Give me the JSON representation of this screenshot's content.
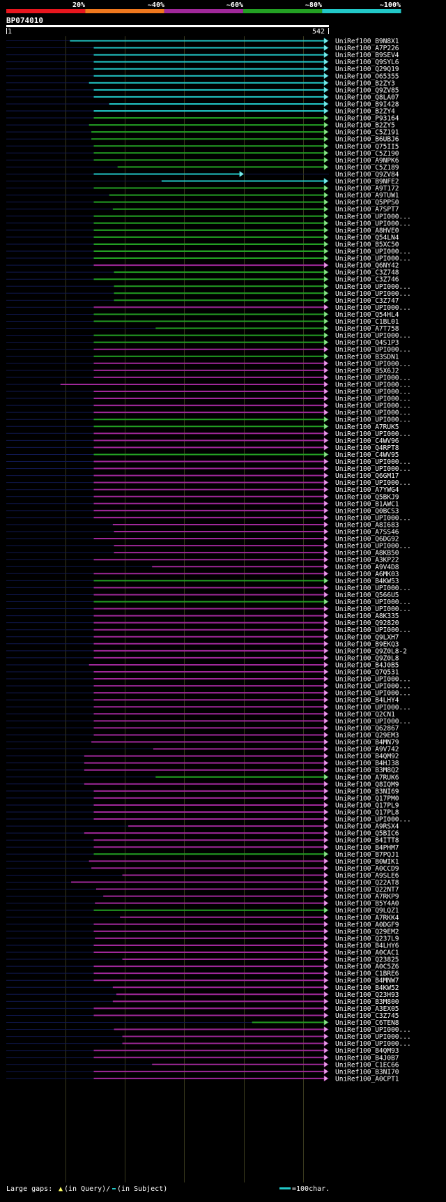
{
  "identity_scale": {
    "labels": [
      "20%",
      "~40%",
      "~60%",
      "~80%",
      "~100%"
    ],
    "colors": [
      "#e8161e",
      "#f0781e",
      "#a0289a",
      "#23a023",
      "#22c8c8"
    ]
  },
  "query": {
    "name": "BP074010",
    "start_label": "1",
    "end_label": "542",
    "length": 542
  },
  "hits": [
    {
      "name": "UniRef100_B9N8X1",
      "s": 108,
      "e": 542,
      "c": "cyan"
    },
    {
      "name": "UniRef100_A7P226",
      "s": 148,
      "e": 542,
      "c": "cyan"
    },
    {
      "name": "UniRef100_B9SEV4",
      "s": 148,
      "e": 542,
      "c": "cyan"
    },
    {
      "name": "UniRef100_Q9SYL6",
      "s": 148,
      "e": 542,
      "c": "cyan"
    },
    {
      "name": "UniRef100_Q29Q19",
      "s": 148,
      "e": 542,
      "c": "cyan"
    },
    {
      "name": "UniRef100_O65355",
      "s": 148,
      "e": 542,
      "c": "cyan"
    },
    {
      "name": "UniRef100_B2ZY3",
      "s": 140,
      "e": 542,
      "c": "cyan"
    },
    {
      "name": "UniRef100_Q9ZV85",
      "s": 148,
      "e": 542,
      "c": "cyan"
    },
    {
      "name": "UniRef100_Q8LA07",
      "s": 148,
      "e": 542,
      "c": "cyan"
    },
    {
      "name": "UniRef100_B9I428",
      "s": 174,
      "e": 542,
      "c": "cyan"
    },
    {
      "name": "UniRef100_B2ZY4",
      "s": 148,
      "e": 542,
      "c": "cyan"
    },
    {
      "name": "UniRef100_P93164",
      "s": 148,
      "e": 542,
      "c": "green"
    },
    {
      "name": "UniRef100_B2ZY5",
      "s": 140,
      "e": 542,
      "c": "green"
    },
    {
      "name": "UniRef100_C5Z191",
      "s": 144,
      "e": 542,
      "c": "green"
    },
    {
      "name": "UniRef100_B6UBJ6",
      "s": 144,
      "e": 542,
      "c": "green"
    },
    {
      "name": "UniRef100_Q75II5",
      "s": 148,
      "e": 542,
      "c": "green"
    },
    {
      "name": "UniRef100_C5Z190",
      "s": 148,
      "e": 542,
      "c": "green"
    },
    {
      "name": "UniRef100_A9NPK6",
      "s": 148,
      "e": 542,
      "c": "green"
    },
    {
      "name": "UniRef100_C5Z189",
      "s": 188,
      "e": 542,
      "c": "green"
    },
    {
      "name": "UniRef100_Q9ZV84",
      "s": 148,
      "e": 400,
      "c": "cyan"
    },
    {
      "name": "UniRef100_B9NFE2",
      "s": 262,
      "e": 542,
      "c": "cyan"
    },
    {
      "name": "UniRef100_A9T172",
      "s": 148,
      "e": 542,
      "c": "green"
    },
    {
      "name": "UniRef100_A9TUW1",
      "s": 174,
      "e": 542,
      "c": "green"
    },
    {
      "name": "UniRef100_Q5PPS0",
      "s": 148,
      "e": 542,
      "c": "green"
    },
    {
      "name": "UniRef100_A7SPT7",
      "s": 180,
      "e": 542,
      "c": "green"
    },
    {
      "name": "UniRef100_UPI000...",
      "s": 148,
      "e": 542,
      "c": "green"
    },
    {
      "name": "UniRef100_UPI000...",
      "s": 148,
      "e": 542,
      "c": "green"
    },
    {
      "name": "UniRef100_A8HVE0",
      "s": 148,
      "e": 542,
      "c": "green"
    },
    {
      "name": "UniRef100_Q54LN4",
      "s": 148,
      "e": 542,
      "c": "green"
    },
    {
      "name": "UniRef100_B5XC50",
      "s": 148,
      "e": 542,
      "c": "green"
    },
    {
      "name": "UniRef100_UPI000...",
      "s": 148,
      "e": 542,
      "c": "green"
    },
    {
      "name": "UniRef100_UPI000...",
      "s": 148,
      "e": 542,
      "c": "green"
    },
    {
      "name": "UniRef100_Q6NY42",
      "s": 148,
      "e": 542,
      "c": "magenta"
    },
    {
      "name": "UniRef100_C3Z748",
      "s": 182,
      "e": 542,
      "c": "green"
    },
    {
      "name": "UniRef100_C3Z746",
      "s": 148,
      "e": 542,
      "c": "green"
    },
    {
      "name": "UniRef100_UPI000...",
      "s": 182,
      "e": 542,
      "c": "green"
    },
    {
      "name": "UniRef100_UPI000...",
      "s": 182,
      "e": 542,
      "c": "green"
    },
    {
      "name": "UniRef100_C3Z747",
      "s": 182,
      "e": 542,
      "c": "green"
    },
    {
      "name": "UniRef100_UPI000...",
      "s": 148,
      "e": 542,
      "c": "magenta"
    },
    {
      "name": "UniRef100_Q54HL4",
      "s": 148,
      "e": 542,
      "c": "green"
    },
    {
      "name": "UniRef100_C1BL01",
      "s": 148,
      "e": 542,
      "c": "green"
    },
    {
      "name": "UniRef100_A7T758",
      "s": 252,
      "e": 542,
      "c": "green"
    },
    {
      "name": "UniRef100_UPI000...",
      "s": 148,
      "e": 542,
      "c": "green"
    },
    {
      "name": "UniRef100_Q4S1P3",
      "s": 148,
      "e": 542,
      "c": "green"
    },
    {
      "name": "UniRef100_UPI000...",
      "s": 148,
      "e": 542,
      "c": "magenta"
    },
    {
      "name": "UniRef100_B3SDN1",
      "s": 148,
      "e": 542,
      "c": "green"
    },
    {
      "name": "UniRef100_UPI000...",
      "s": 148,
      "e": 542,
      "c": "magenta"
    },
    {
      "name": "UniRef100_B5X6J2",
      "s": 148,
      "e": 542,
      "c": "magenta"
    },
    {
      "name": "UniRef100_UPI000...",
      "s": 148,
      "e": 542,
      "c": "magenta"
    },
    {
      "name": "UniRef100_UPI000...",
      "s": 92,
      "e": 542,
      "c": "magenta"
    },
    {
      "name": "UniRef100_UPI000...",
      "s": 148,
      "e": 542,
      "c": "magenta"
    },
    {
      "name": "UniRef100_UPI000...",
      "s": 148,
      "e": 542,
      "c": "magenta"
    },
    {
      "name": "UniRef100_UPI000...",
      "s": 148,
      "e": 542,
      "c": "magenta"
    },
    {
      "name": "UniRef100_UPI000...",
      "s": 148,
      "e": 542,
      "c": "magenta"
    },
    {
      "name": "UniRef100_UPI000...",
      "s": 148,
      "e": 542,
      "c": "green"
    },
    {
      "name": "UniRef100_A7RUK5",
      "s": 148,
      "e": 542,
      "c": "green"
    },
    {
      "name": "UniRef100_UPI000...",
      "s": 148,
      "e": 542,
      "c": "magenta"
    },
    {
      "name": "UniRef100_C4WV96",
      "s": 148,
      "e": 542,
      "c": "magenta"
    },
    {
      "name": "UniRef100_Q4RPT8",
      "s": 148,
      "e": 542,
      "c": "magenta"
    },
    {
      "name": "UniRef100_C4WV95",
      "s": 148,
      "e": 542,
      "c": "green"
    },
    {
      "name": "UniRef100_UPI000...",
      "s": 148,
      "e": 542,
      "c": "magenta"
    },
    {
      "name": "UniRef100_UPI000...",
      "s": 148,
      "e": 542,
      "c": "magenta"
    },
    {
      "name": "UniRef100_Q6GM17",
      "s": 148,
      "e": 542,
      "c": "magenta"
    },
    {
      "name": "UniRef100_UPI000...",
      "s": 148,
      "e": 542,
      "c": "magenta"
    },
    {
      "name": "UniRef100_A7YWG4",
      "s": 148,
      "e": 542,
      "c": "magenta"
    },
    {
      "name": "UniRef100_Q5BKJ9",
      "s": 148,
      "e": 542,
      "c": "magenta"
    },
    {
      "name": "UniRef100_B1AWC1",
      "s": 148,
      "e": 542,
      "c": "magenta"
    },
    {
      "name": "UniRef100_Q0BCS3",
      "s": 148,
      "e": 542,
      "c": "magenta"
    },
    {
      "name": "UniRef100_UPI000...",
      "s": 148,
      "e": 542,
      "c": "magenta"
    },
    {
      "name": "UniRef100_A8I683",
      "s": 180,
      "e": 542,
      "c": "magenta"
    },
    {
      "name": "UniRef100_A7SS46",
      "s": 182,
      "e": 542,
      "c": "magenta"
    },
    {
      "name": "UniRef100_Q6DG92",
      "s": 148,
      "e": 542,
      "c": "magenta"
    },
    {
      "name": "UniRef100_UPI000...",
      "s": 182,
      "e": 542,
      "c": "magenta"
    },
    {
      "name": "UniRef100_A8KB50",
      "s": 182,
      "e": 542,
      "c": "magenta"
    },
    {
      "name": "UniRef100_A3KP22",
      "s": 148,
      "e": 542,
      "c": "magenta"
    },
    {
      "name": "UniRef100_A9V4D8",
      "s": 246,
      "e": 542,
      "c": "magenta"
    },
    {
      "name": "UniRef100_A6MK03",
      "s": 148,
      "e": 542,
      "c": "magenta"
    },
    {
      "name": "UniRef100_B4KW53",
      "s": 148,
      "e": 542,
      "c": "green"
    },
    {
      "name": "UniRef100_UPI000...",
      "s": 148,
      "e": 542,
      "c": "magenta"
    },
    {
      "name": "UniRef100_Q566U5",
      "s": 148,
      "e": 542,
      "c": "magenta"
    },
    {
      "name": "UniRef100_UPI000...",
      "s": 148,
      "e": 542,
      "c": "green"
    },
    {
      "name": "UniRef100_UPI000...",
      "s": 148,
      "e": 542,
      "c": "magenta"
    },
    {
      "name": "UniRef100_A8K335",
      "s": 148,
      "e": 542,
      "c": "magenta"
    },
    {
      "name": "UniRef100_Q92820",
      "s": 148,
      "e": 542,
      "c": "magenta"
    },
    {
      "name": "UniRef100_UPI000...",
      "s": 148,
      "e": 542,
      "c": "magenta"
    },
    {
      "name": "UniRef100_Q9LXH7",
      "s": 148,
      "e": 542,
      "c": "magenta"
    },
    {
      "name": "UniRef100_B9EKQ3",
      "s": 148,
      "e": 542,
      "c": "magenta"
    },
    {
      "name": "UniRef100_Q9Z0L8-2",
      "s": 148,
      "e": 542,
      "c": "magenta"
    },
    {
      "name": "UniRef100_Q9Z0L8",
      "s": 148,
      "e": 542,
      "c": "magenta"
    },
    {
      "name": "UniRef100_B4J0B5",
      "s": 140,
      "e": 542,
      "c": "magenta"
    },
    {
      "name": "UniRef100_Q7Q531",
      "s": 148,
      "e": 542,
      "c": "magenta"
    },
    {
      "name": "UniRef100_UPI000...",
      "s": 148,
      "e": 542,
      "c": "magenta"
    },
    {
      "name": "UniRef100_UPI000...",
      "s": 148,
      "e": 542,
      "c": "magenta"
    },
    {
      "name": "UniRef100_UPI000...",
      "s": 148,
      "e": 542,
      "c": "magenta"
    },
    {
      "name": "UniRef100_B4LHY4",
      "s": 148,
      "e": 542,
      "c": "magenta"
    },
    {
      "name": "UniRef100_UPI000...",
      "s": 148,
      "e": 542,
      "c": "magenta"
    },
    {
      "name": "UniRef100_Q2CN1",
      "s": 148,
      "e": 542,
      "c": "magenta"
    },
    {
      "name": "UniRef100_UPI000...",
      "s": 148,
      "e": 542,
      "c": "magenta"
    },
    {
      "name": "UniRef100_Q62867",
      "s": 148,
      "e": 542,
      "c": "magenta"
    },
    {
      "name": "UniRef100_Q29EM3",
      "s": 148,
      "e": 542,
      "c": "magenta"
    },
    {
      "name": "UniRef100_B4MN79",
      "s": 144,
      "e": 542,
      "c": "magenta"
    },
    {
      "name": "UniRef100_A9V742",
      "s": 248,
      "e": 542,
      "c": "magenta"
    },
    {
      "name": "UniRef100_B4QM92",
      "s": 132,
      "e": 542,
      "c": "magenta"
    },
    {
      "name": "UniRef100_B4HJ38",
      "s": 132,
      "e": 542,
      "c": "magenta"
    },
    {
      "name": "UniRef100_B3M8Q2",
      "s": 132,
      "e": 542,
      "c": "magenta"
    },
    {
      "name": "UniRef100_A7RUK6",
      "s": 252,
      "e": 542,
      "c": "green"
    },
    {
      "name": "UniRef100_Q8IQM9",
      "s": 132,
      "e": 542,
      "c": "magenta"
    },
    {
      "name": "UniRef100_B3NI69",
      "s": 148,
      "e": 542,
      "c": "magenta"
    },
    {
      "name": "UniRef100_Q17PM0",
      "s": 148,
      "e": 542,
      "c": "magenta"
    },
    {
      "name": "UniRef100_Q17PL9",
      "s": 148,
      "e": 542,
      "c": "magenta"
    },
    {
      "name": "UniRef100_Q17PL8",
      "s": 148,
      "e": 542,
      "c": "magenta"
    },
    {
      "name": "UniRef100_UPI000...",
      "s": 148,
      "e": 542,
      "c": "magenta"
    },
    {
      "name": "UniRef100_A9RSX4",
      "s": 206,
      "e": 542,
      "c": "magenta"
    },
    {
      "name": "UniRef100_Q5BIC6",
      "s": 132,
      "e": 542,
      "c": "magenta"
    },
    {
      "name": "UniRef100_B4ITT8",
      "s": 148,
      "e": 542,
      "c": "magenta"
    },
    {
      "name": "UniRef100_B4PHM7",
      "s": 148,
      "e": 542,
      "c": "magenta"
    },
    {
      "name": "UniRef100_B7PQJ1",
      "s": 148,
      "e": 542,
      "c": "green"
    },
    {
      "name": "UniRef100_B0WIK1",
      "s": 140,
      "e": 542,
      "c": "magenta"
    },
    {
      "name": "UniRef100_A0CCD9",
      "s": 144,
      "e": 542,
      "c": "magenta"
    },
    {
      "name": "UniRef100_A9SLE6",
      "s": 196,
      "e": 542,
      "c": "magenta"
    },
    {
      "name": "UniRef100_Q22AT8",
      "s": 110,
      "e": 542,
      "c": "magenta"
    },
    {
      "name": "UniRef100_Q22NT7",
      "s": 152,
      "e": 542,
      "c": "magenta"
    },
    {
      "name": "UniRef100_A7RKP9",
      "s": 164,
      "e": 542,
      "c": "magenta"
    },
    {
      "name": "UniRef100_B5Y4A0",
      "s": 150,
      "e": 542,
      "c": "magenta"
    },
    {
      "name": "UniRef100_Q9LQZ1",
      "s": 148,
      "e": 542,
      "c": "green"
    },
    {
      "name": "UniRef100_A7RKK4",
      "s": 192,
      "e": 542,
      "c": "magenta"
    },
    {
      "name": "UniRef100_A0DGF9",
      "s": 148,
      "e": 542,
      "c": "magenta"
    },
    {
      "name": "UniRef100_Q29EM2",
      "s": 148,
      "e": 542,
      "c": "magenta"
    },
    {
      "name": "UniRef100_Q237L9",
      "s": 150,
      "e": 542,
      "c": "magenta"
    },
    {
      "name": "UniRef100_B4LHY6",
      "s": 148,
      "e": 542,
      "c": "magenta"
    },
    {
      "name": "UniRef100_A0CAC1",
      "s": 148,
      "e": 542,
      "c": "magenta"
    },
    {
      "name": "UniRef100_Q23825",
      "s": 196,
      "e": 542,
      "c": "magenta"
    },
    {
      "name": "UniRef100_A0C5Z6",
      "s": 148,
      "e": 542,
      "c": "magenta"
    },
    {
      "name": "UniRef100_C1BRE6",
      "s": 148,
      "e": 542,
      "c": "magenta"
    },
    {
      "name": "UniRef100_B4MNW7",
      "s": 148,
      "e": 542,
      "c": "magenta"
    },
    {
      "name": "UniRef100_B4KW52",
      "s": 180,
      "e": 542,
      "c": "magenta"
    },
    {
      "name": "UniRef100_Q23H93",
      "s": 186,
      "e": 542,
      "c": "magenta"
    },
    {
      "name": "UniRef100_B3M800",
      "s": 180,
      "e": 542,
      "c": "magenta"
    },
    {
      "name": "UniRef100_A3EX05",
      "s": 148,
      "e": 542,
      "c": "magenta"
    },
    {
      "name": "UniRef100_C3Z745",
      "s": 148,
      "e": 542,
      "c": "magenta"
    },
    {
      "name": "UniRef100_C6TEN8",
      "s": 414,
      "e": 542,
      "c": "green"
    },
    {
      "name": "UniRef100_UPI000...",
      "s": 182,
      "e": 542,
      "c": "magenta"
    },
    {
      "name": "UniRef100_UPI000...",
      "s": 196,
      "e": 542,
      "c": "magenta"
    },
    {
      "name": "UniRef100_UPI000...",
      "s": 196,
      "e": 542,
      "c": "magenta"
    },
    {
      "name": "UniRef100_B4QM93",
      "s": 148,
      "e": 542,
      "c": "magenta"
    },
    {
      "name": "UniRef100_B4J0B7",
      "s": 148,
      "e": 542,
      "c": "magenta"
    },
    {
      "name": "UniRef100_C1EC66",
      "s": 246,
      "e": 542,
      "c": "magenta"
    },
    {
      "name": "UniRef100_B3NI70",
      "s": 148,
      "e": 542,
      "c": "magenta"
    },
    {
      "name": "UniRef100_A0CPT1",
      "s": 148,
      "e": 542,
      "c": "magenta"
    }
  ],
  "legend": {
    "gaps_label": "Large gaps:",
    "query_gap": "(in Query)/",
    "subject_gap": "(in Subject)",
    "scale_label": "=100char."
  }
}
